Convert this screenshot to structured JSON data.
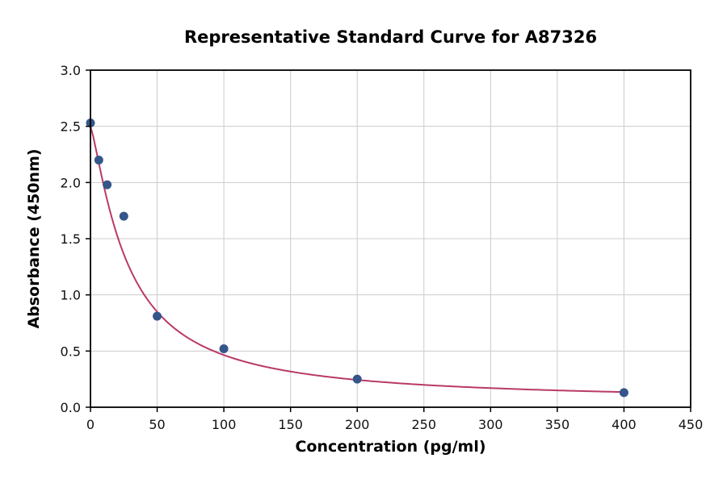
{
  "chart_data": {
    "type": "scatter",
    "title": "Representative Standard Curve for A87326",
    "xlabel": "Concentration (pg/ml)",
    "ylabel": "Absorbance (450nm)",
    "xlim": [
      0,
      450
    ],
    "ylim": [
      0,
      3.0
    ],
    "xticks": [
      0,
      50,
      100,
      150,
      200,
      250,
      300,
      350,
      400,
      450
    ],
    "yticks": [
      0.0,
      0.5,
      1.0,
      1.5,
      2.0,
      2.5,
      3.0
    ],
    "grid": true,
    "grid_color": "#cccccc",
    "point_color": "#35568a",
    "curve_color": "#b93a66",
    "points": [
      [
        0,
        2.53
      ],
      [
        6.25,
        2.2
      ],
      [
        12.5,
        1.98
      ],
      [
        25,
        1.7
      ],
      [
        50,
        0.81
      ],
      [
        100,
        0.52
      ],
      [
        200,
        0.25
      ],
      [
        400,
        0.13
      ]
    ],
    "fit": {
      "type": "4PL",
      "a": 2.5,
      "b": 1.25,
      "c": 28,
      "d": 0.05,
      "x_range": [
        0,
        400
      ]
    }
  }
}
